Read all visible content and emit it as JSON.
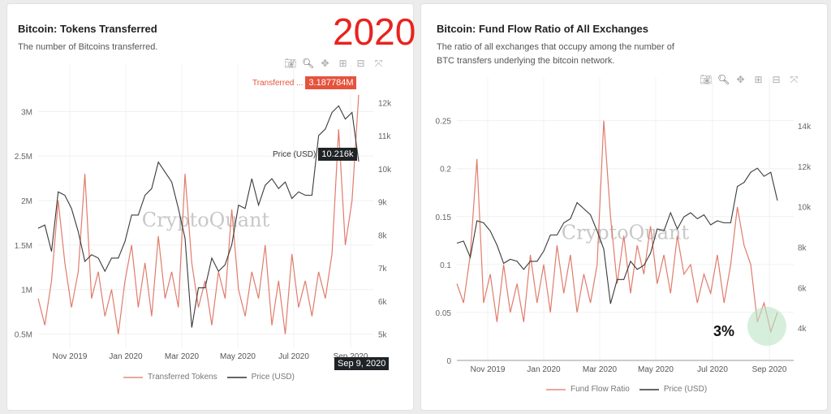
{
  "overlay": {
    "year_label": "2020",
    "annotation": "3%"
  },
  "colors": {
    "tokens": "#e07c6c",
    "price": "#3a3a3a",
    "tooltip_red": "#e5533d",
    "tooltip_dark": "#1f2326",
    "highlight": "#b9e5c4",
    "overlay_red": "#e8231e"
  },
  "toolbar_icons": [
    "camera-icon",
    "zoom-icon",
    "pan-icon",
    "zoom-in-icon",
    "zoom-out-icon",
    "autoscale-icon"
  ],
  "watermark": "CryptoQuant",
  "left_card": {
    "title": "Bitcoin: Tokens Transferred",
    "subtitle": "The number of Bitcoins transferred.",
    "tooltip_series": "Transferred ...",
    "tooltip_value": "3.187784M",
    "price_tooltip_series": "Price (USD)",
    "price_tooltip_value": "10.216k",
    "date_tooltip": "Sep 9, 2020"
  },
  "right_card": {
    "title": "Bitcoin: Fund Flow Ratio of All Exchanges",
    "subtitle": "The ratio of all exchanges that occupy among the number of BTC transfers underlying the bitcoin network."
  },
  "chart_data": [
    {
      "type": "line",
      "title": "Bitcoin: Tokens Transferred",
      "x_tick_labels": [
        "Nov 2019",
        "Jan 2020",
        "Mar 2020",
        "May 2020",
        "Jul 2020",
        "Sep 2020"
      ],
      "y_left_ticks": [
        "0.5M",
        "1M",
        "1.5M",
        "2M",
        "2.5M",
        "3M"
      ],
      "y_left_range": [
        0.35,
        3.25
      ],
      "y_right_ticks": [
        "5k",
        "6k",
        "7k",
        "8k",
        "9k",
        "10k",
        "11k",
        "12k"
      ],
      "y_right_range": [
        4600,
        12400
      ],
      "grid": true,
      "legend": "bottom",
      "series": [
        {
          "name": "Transferred Tokens",
          "axis": "left",
          "unit": "M",
          "values": [
            0.9,
            0.6,
            1.1,
            2.0,
            1.3,
            0.8,
            1.2,
            2.3,
            0.9,
            1.2,
            0.7,
            1.0,
            0.5,
            1.1,
            1.5,
            0.8,
            1.3,
            0.7,
            1.6,
            0.9,
            1.2,
            0.8,
            2.3,
            1.3,
            0.8,
            1.1,
            0.6,
            1.2,
            0.9,
            1.9,
            1.0,
            0.7,
            1.2,
            0.9,
            1.5,
            0.6,
            1.1,
            0.5,
            1.4,
            0.8,
            1.1,
            0.7,
            1.2,
            0.9,
            1.4,
            2.8,
            1.5,
            2.0,
            3.187784
          ]
        },
        {
          "name": "Price (USD)",
          "axis": "right",
          "values": [
            8200,
            8300,
            7500,
            9300,
            9200,
            8800,
            8100,
            7200,
            7400,
            7300,
            6900,
            7300,
            7300,
            7800,
            8600,
            8600,
            9200,
            9400,
            10200,
            9900,
            9600,
            8800,
            7900,
            5200,
            6400,
            6400,
            7300,
            6900,
            7100,
            7700,
            8900,
            8800,
            9700,
            8900,
            9500,
            9700,
            9400,
            9600,
            9100,
            9300,
            9200,
            9200,
            11000,
            11200,
            11700,
            11900,
            11500,
            11700,
            10216
          ]
        }
      ]
    },
    {
      "type": "line",
      "title": "Bitcoin: Fund Flow Ratio of All Exchanges",
      "x_tick_labels": [
        "Nov 2019",
        "Jan 2020",
        "Mar 2020",
        "May 2020",
        "Jul 2020",
        "Sep 2020"
      ],
      "y_left_ticks": [
        "0",
        "0.05",
        "0.1",
        "0.15",
        "0.2",
        "0.25"
      ],
      "y_left_range": [
        0,
        0.27
      ],
      "y_right_ticks": [
        "4k",
        "6k",
        "8k",
        "10k",
        "12k",
        "14k"
      ],
      "y_right_range": [
        2400,
        15200
      ],
      "grid": true,
      "legend": "bottom",
      "series": [
        {
          "name": "Fund Flow Ratio",
          "axis": "left",
          "values": [
            0.08,
            0.06,
            0.11,
            0.21,
            0.06,
            0.09,
            0.04,
            0.1,
            0.05,
            0.08,
            0.04,
            0.11,
            0.06,
            0.1,
            0.05,
            0.12,
            0.07,
            0.11,
            0.05,
            0.09,
            0.06,
            0.1,
            0.25,
            0.15,
            0.08,
            0.13,
            0.07,
            0.12,
            0.09,
            0.14,
            0.08,
            0.11,
            0.07,
            0.13,
            0.09,
            0.1,
            0.06,
            0.09,
            0.07,
            0.11,
            0.06,
            0.1,
            0.16,
            0.12,
            0.1,
            0.04,
            0.06,
            0.03,
            0.05
          ]
        },
        {
          "name": "Price (USD)",
          "axis": "right",
          "values": [
            8200,
            8300,
            7500,
            9300,
            9200,
            8800,
            8100,
            7200,
            7400,
            7300,
            6900,
            7300,
            7300,
            7800,
            8600,
            8600,
            9200,
            9400,
            10200,
            9900,
            9600,
            8800,
            7900,
            5200,
            6400,
            6400,
            7300,
            6900,
            7100,
            7700,
            8900,
            8800,
            9700,
            8900,
            9500,
            9700,
            9400,
            9600,
            9100,
            9300,
            9200,
            9200,
            11000,
            11200,
            11700,
            11900,
            11500,
            11700,
            10300
          ]
        }
      ]
    }
  ]
}
